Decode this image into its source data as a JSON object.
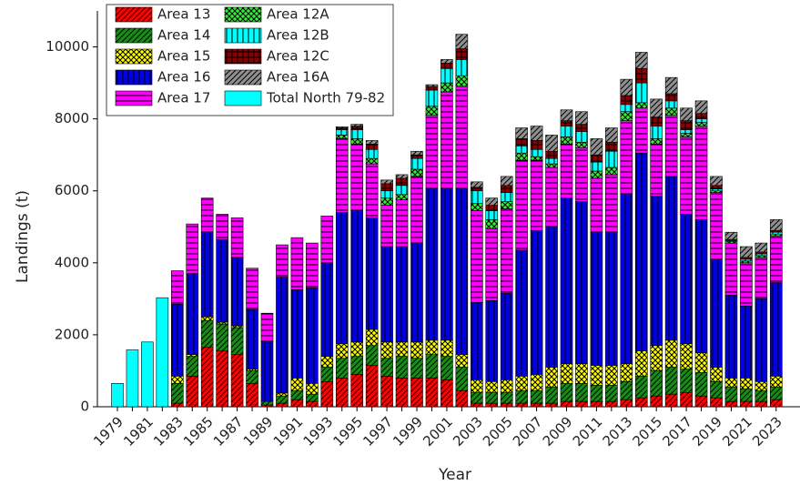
{
  "chart_data": {
    "type": "stacked-bar",
    "x_label": "Year",
    "y_label": "Landings (t)",
    "categories": [
      "1979",
      null,
      "1981",
      null,
      "1983",
      null,
      "1985",
      null,
      "1987",
      null,
      "1989",
      null,
      "1991",
      null,
      "1993",
      null,
      "1995",
      null,
      "1997",
      null,
      "1999",
      null,
      "2001",
      null,
      "2003",
      null,
      "2005",
      null,
      "2007",
      null,
      "2009",
      null,
      "2011",
      null,
      "2013",
      null,
      "2015",
      null,
      "2017",
      null,
      "2019",
      null,
      "2021",
      null,
      "2023"
    ],
    "ylim": [
      0,
      11000
    ],
    "yticks": [
      0,
      2000,
      4000,
      6000,
      8000,
      10000
    ],
    "series": [
      {
        "name": "Area 13",
        "color": "#ff0000",
        "pattern": "diag",
        "values": [
          null,
          null,
          null,
          null,
          100,
          850,
          1650,
          1550,
          1450,
          650,
          50,
          100,
          200,
          150,
          700,
          800,
          900,
          1150,
          850,
          800,
          800,
          800,
          750,
          450,
          100,
          100,
          100,
          100,
          100,
          100,
          150,
          150,
          150,
          150,
          200,
          250,
          300,
          350,
          400,
          300,
          250,
          150,
          150,
          150,
          200
        ]
      },
      {
        "name": "Area 14",
        "color": "#1a8a1a",
        "pattern": "diag",
        "values": [
          null,
          null,
          null,
          null,
          550,
          550,
          750,
          750,
          750,
          350,
          100,
          200,
          250,
          200,
          400,
          550,
          500,
          550,
          500,
          600,
          550,
          650,
          650,
          650,
          300,
          300,
          300,
          350,
          350,
          450,
          500,
          500,
          450,
          450,
          500,
          600,
          700,
          750,
          650,
          650,
          450,
          400,
          350,
          300,
          350
        ]
      },
      {
        "name": "Area 15",
        "color": "#ffff00",
        "pattern": "cross",
        "values": [
          null,
          null,
          null,
          null,
          200,
          50,
          100,
          50,
          50,
          50,
          0,
          80,
          350,
          300,
          300,
          400,
          400,
          450,
          450,
          400,
          450,
          400,
          450,
          350,
          350,
          300,
          350,
          400,
          450,
          550,
          550,
          550,
          550,
          550,
          500,
          700,
          700,
          750,
          700,
          550,
          400,
          250,
          300,
          250,
          300
        ]
      },
      {
        "name": "Area 16",
        "color": "#0000e0",
        "pattern": "vert",
        "values": [
          null,
          null,
          null,
          null,
          2000,
          2250,
          2350,
          2300,
          1900,
          1650,
          1650,
          3220,
          2450,
          2650,
          2600,
          3650,
          3650,
          3100,
          2650,
          2650,
          2750,
          4200,
          4200,
          4600,
          2150,
          2250,
          2400,
          3500,
          4000,
          3900,
          4600,
          4500,
          3700,
          3700,
          4700,
          5500,
          4150,
          4550,
          3600,
          3700,
          3000,
          2300,
          2000,
          2300,
          2600
        ]
      },
      {
        "name": "Area 17",
        "color": "#ff00ff",
        "pattern": "horiz",
        "values": [
          null,
          null,
          null,
          null,
          930,
          1380,
          950,
          700,
          1100,
          1150,
          800,
          900,
          1450,
          1250,
          1300,
          2050,
          1850,
          1500,
          1150,
          1300,
          1850,
          2050,
          2700,
          2850,
          2550,
          2000,
          2350,
          2500,
          1950,
          1650,
          1500,
          1500,
          1500,
          1600,
          2050,
          1250,
          1450,
          1700,
          2150,
          2600,
          1850,
          1450,
          1200,
          1150,
          1300
        ]
      },
      {
        "name": "Area 12A",
        "color": "#33ee33",
        "pattern": "cross",
        "values": [
          null,
          null,
          null,
          null,
          null,
          null,
          null,
          null,
          null,
          null,
          null,
          null,
          null,
          null,
          null,
          100,
          150,
          150,
          200,
          150,
          200,
          250,
          250,
          300,
          200,
          250,
          200,
          200,
          100,
          100,
          200,
          150,
          200,
          200,
          250,
          150,
          150,
          200,
          100,
          100,
          50,
          50,
          50,
          50,
          50
        ]
      },
      {
        "name": "Area 12B",
        "color": "#00ffff",
        "pattern": "vert",
        "values": [
          null,
          null,
          null,
          null,
          null,
          null,
          null,
          null,
          null,
          null,
          null,
          null,
          null,
          null,
          null,
          150,
          250,
          250,
          200,
          250,
          300,
          450,
          400,
          450,
          350,
          250,
          250,
          200,
          200,
          150,
          300,
          300,
          250,
          450,
          200,
          550,
          350,
          200,
          100,
          100,
          50,
          20,
          50,
          50,
          50
        ]
      },
      {
        "name": "Area 12C",
        "color": "#8b0000",
        "pattern": "grid",
        "values": [
          null,
          null,
          null,
          null,
          null,
          null,
          null,
          null,
          null,
          null,
          null,
          null,
          null,
          null,
          null,
          50,
          100,
          150,
          200,
          200,
          100,
          100,
          150,
          300,
          100,
          150,
          200,
          200,
          250,
          200,
          150,
          200,
          200,
          250,
          250,
          400,
          250,
          200,
          250,
          150,
          100,
          30,
          50,
          50,
          50
        ]
      },
      {
        "name": "Area 16A",
        "color": "#909090",
        "pattern": "diag",
        "values": [
          null,
          null,
          null,
          null,
          null,
          null,
          null,
          null,
          null,
          null,
          null,
          null,
          null,
          null,
          null,
          30,
          50,
          100,
          100,
          100,
          100,
          50,
          100,
          400,
          150,
          200,
          250,
          300,
          400,
          450,
          300,
          350,
          450,
          400,
          450,
          450,
          500,
          450,
          350,
          350,
          250,
          200,
          300,
          250,
          300
        ]
      },
      {
        "name": "Total North 79-82",
        "color": "#00ffff",
        "pattern": "none",
        "values": [
          650,
          1580,
          1800,
          3030,
          null,
          null,
          null,
          null,
          null,
          null,
          null,
          null,
          null,
          null,
          null,
          null,
          null,
          null,
          null,
          null,
          null,
          null,
          null,
          null,
          null,
          null,
          null,
          null,
          null,
          null,
          null,
          null,
          null,
          null,
          null,
          null,
          null,
          null,
          null,
          null,
          null,
          null,
          null,
          null,
          null
        ]
      }
    ]
  }
}
